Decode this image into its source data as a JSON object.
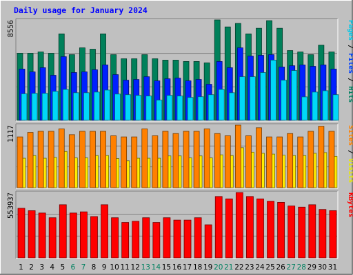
{
  "chart_data": {
    "type": "bar",
    "title": "Daily usage for January 2024",
    "categories": [
      "1",
      "2",
      "3",
      "4",
      "5",
      "6",
      "7",
      "8",
      "9",
      "10",
      "11",
      "12",
      "13",
      "14",
      "15",
      "16",
      "17",
      "18",
      "19",
      "20",
      "21",
      "22",
      "23",
      "24",
      "25",
      "26",
      "27",
      "28",
      "29",
      "30",
      "31"
    ],
    "weekend_days": [
      6,
      7,
      13,
      14,
      20,
      21,
      27,
      28
    ],
    "panels": [
      {
        "name": "hits-files-pages",
        "ymax_label": "8556",
        "ymax": 8556,
        "side_label": [
          {
            "text": "Pages",
            "color": "#00c8e8"
          },
          {
            "text": " / ",
            "color": "#000000"
          },
          {
            "text": "Files",
            "color": "#0040ff"
          },
          {
            "text": " / ",
            "color": "#000000"
          },
          {
            "text": "Hits",
            "color": "#008060"
          }
        ],
        "series": [
          {
            "name": "Hits",
            "color": "#00805a",
            "values": [
              5712,
              5712,
              5828,
              5712,
              7369,
              5596,
              6178,
              6062,
              7369,
              5596,
              5247,
              5247,
              5596,
              5247,
              5130,
              5130,
              5013,
              5013,
              4897,
              8556,
              7961,
              8260,
              7369,
              7844,
              8495,
              7844,
              5945,
              5828,
              5596,
              6410,
              5828
            ]
          },
          {
            "name": "Files",
            "color": "#0020ff",
            "values": [
              4366,
              4130,
              4483,
              3835,
              5424,
              4071,
              4130,
              4309,
              4719,
              3893,
              3422,
              3479,
              3714,
              3365,
              3541,
              3596,
              3365,
              3481,
              3069,
              5013,
              4483,
              6178,
              5476,
              5535,
              5596,
              4543,
              4652,
              4719,
              4598,
              4719,
              4366
            ]
          },
          {
            "name": "Pages",
            "color": "#00d8f8",
            "values": [
              2263,
              2297,
              2297,
              2469,
              2637,
              2353,
              2353,
              2410,
              2581,
              2239,
              2184,
              2124,
              2072,
              1722,
              2124,
              2072,
              1950,
              2010,
              2184,
              2637,
              2353,
              3714,
              3714,
              4071,
              5130,
              3422,
              4243,
              1999,
              2410,
              2524,
              2184
            ]
          }
        ]
      },
      {
        "name": "visits-sites",
        "ymax_label": "1117",
        "ymax": 1117,
        "side_label": [
          {
            "text": "Sites",
            "color": "#ff8000"
          },
          {
            "text": " / ",
            "color": "#000000"
          },
          {
            "text": "Visits",
            "color": "#e8e800"
          }
        ],
        "series": [
          {
            "name": "Visits",
            "color": "#ffee00",
            "values": [
              527,
              574,
              527,
              540,
              647,
              532,
              532,
              574,
              574,
              521,
              481,
              527,
              527,
              527,
              568,
              568,
              532,
              568,
              532,
              587,
              574,
              714,
              634,
              614,
              600,
              580,
              574,
              574,
              614,
              627,
              560
            ]
          },
          {
            "name": "Sites",
            "color": "#ff8000",
            "values": [
              907,
              987,
              1007,
              1007,
              1050,
              947,
              1007,
              1007,
              1007,
              927,
              907,
              907,
              1050,
              927,
              1007,
              967,
              1007,
              1007,
              1050,
              967,
              927,
              1117,
              927,
              1070,
              907,
              907,
              967,
              907,
              1007,
              1097,
              1007
            ]
          }
        ]
      },
      {
        "name": "kbytes",
        "ymax_label": "553937",
        "ymax": 553937,
        "side_label": [
          {
            "text": "KBytes",
            "color": "#ff0000"
          }
        ],
        "series": [
          {
            "name": "KBytes",
            "color": "#ff0000",
            "values": [
              420000,
              400000,
              380000,
              340000,
              450000,
              380000,
              390000,
              350000,
              450000,
              340000,
              300000,
              310000,
              340000,
              300000,
              340000,
              320000,
              320000,
              340000,
              280000,
              520000,
              500000,
              553937,
              520000,
              500000,
              480000,
              470000,
              440000,
              430000,
              450000,
              410000,
              400000
            ]
          }
        ]
      }
    ]
  }
}
